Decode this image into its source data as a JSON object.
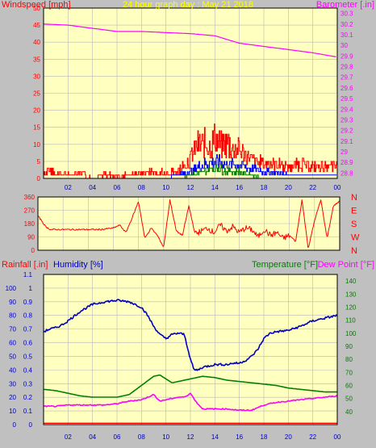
{
  "colors": {
    "background": "#c0c0c0",
    "plot_bg": "#ffffc0",
    "grid": "#b8b8b8",
    "wind_gust": "#ff0000",
    "wind_avg": "#0000ff",
    "wind_calm": "#008000",
    "barometer": "#ff00ff",
    "direction": "#ff0000",
    "humidity": "#0000c0",
    "temperature": "#008000",
    "dewpoint": "#ff00ff",
    "rainfall": "#ff0000",
    "title": "#ffff00"
  },
  "chart_data": [
    {
      "type": "line",
      "title": "24 hour graph day : May 21 2018",
      "left_axis_label": "Windspeed [mph]",
      "right_axis_label": "Barometer [.in]",
      "x_ticks": [
        "02",
        "04",
        "06",
        "08",
        "10",
        "12",
        "14",
        "16",
        "18",
        "20",
        "22",
        "00"
      ],
      "left_ticks": [
        "0",
        "5",
        "10",
        "15",
        "20",
        "25",
        "30",
        "35",
        "40",
        "45",
        "50"
      ],
      "left_ylim": [
        0,
        50
      ],
      "right_ticks": [
        "28.8",
        "28.9",
        "29",
        "29.1",
        "29.2",
        "29.3",
        "29.4",
        "29.5",
        "29.6",
        "29.7",
        "29.8",
        "29.9",
        "30",
        "30.1",
        "30.2",
        "30.3"
      ],
      "right_ylim": [
        28.75,
        30.35
      ],
      "xlim": [
        0,
        24
      ],
      "grid": true,
      "series": [
        {
          "values_x": [
            0,
            2,
            4,
            6,
            8,
            10,
            12,
            14,
            16,
            18,
            20,
            22,
            24
          ],
          "values": [
            30.2,
            30.19,
            30.16,
            30.13,
            30.13,
            30.12,
            30.11,
            30.09,
            30.02,
            29.99,
            29.96,
            29.93,
            29.89
          ],
          "axis": "right",
          "role": "barometer"
        },
        {
          "values_x": [
            0,
            0.5,
            1,
            2,
            3,
            4,
            5,
            6,
            7,
            8,
            9,
            10,
            11,
            11.5,
            12,
            12.5,
            13,
            13.5,
            14,
            14.5,
            15,
            15.5,
            16,
            16.5,
            17,
            18,
            19,
            20,
            21,
            22,
            23,
            24
          ],
          "values": [
            1,
            2,
            1,
            1,
            1,
            0,
            1,
            0,
            1,
            1,
            2,
            1,
            2,
            3,
            6,
            9,
            10,
            8,
            12,
            9,
            10,
            8,
            8,
            7,
            5,
            4,
            4,
            3,
            4,
            3,
            3,
            3
          ],
          "axis": "left",
          "role": "gust"
        },
        {
          "values_x": [
            0,
            2,
            4,
            6,
            8,
            10,
            11,
            12,
            13,
            14,
            15,
            16,
            17,
            18,
            20,
            22,
            24
          ],
          "values": [
            0,
            0,
            0,
            0,
            0,
            0,
            1,
            2,
            4,
            5,
            4,
            4,
            3,
            2,
            1,
            1,
            1
          ],
          "axis": "left",
          "role": "average"
        },
        {
          "values_x": [
            0,
            11,
            12,
            13,
            14,
            15,
            16,
            17,
            18,
            24
          ],
          "values": [
            0,
            0,
            1,
            2,
            3,
            2,
            2,
            1,
            0,
            0
          ],
          "axis": "left",
          "role": "calm"
        }
      ]
    },
    {
      "type": "line",
      "title": "",
      "left_ticks": [
        "0",
        "90",
        "180",
        "270",
        "360"
      ],
      "right_ticks": [
        "N",
        "W",
        "S",
        "E",
        "N"
      ],
      "ylim": [
        0,
        360
      ],
      "xlim": [
        0,
        24
      ],
      "grid": true,
      "series": [
        {
          "values_x": [
            0,
            0.3,
            0.6,
            1,
            3,
            5,
            6,
            6.5,
            7,
            7.5,
            8,
            8.5,
            9,
            9.5,
            10,
            10.5,
            11,
            11.5,
            12,
            12.5,
            13,
            13.5,
            14,
            14.5,
            15,
            15.5,
            16,
            16.5,
            17,
            17.5,
            18,
            18.5,
            19,
            19.5,
            20,
            20.5,
            21,
            21.5,
            22,
            22.5,
            23,
            23.5,
            24
          ],
          "values": [
            230,
            200,
            160,
            140,
            140,
            140,
            150,
            170,
            120,
            220,
            330,
            80,
            150,
            100,
            20,
            340,
            130,
            100,
            300,
            110,
            130,
            150,
            120,
            170,
            130,
            160,
            120,
            150,
            140,
            90,
            140,
            100,
            120,
            80,
            100,
            60,
            340,
            10,
            200,
            340,
            80,
            300,
            330
          ],
          "role": "direction"
        }
      ]
    },
    {
      "type": "line",
      "title": "",
      "label_rainfall": "Rainfall [.in]",
      "label_humidity": "Humidity [%]",
      "label_temperature": "Temperature [°F]",
      "label_dewpoint": "Dew Point [°F]",
      "x_ticks": [
        "02",
        "04",
        "06",
        "08",
        "10",
        "12",
        "14",
        "16",
        "18",
        "20",
        "22",
        "00"
      ],
      "rain_ticks": [
        "0",
        "0.1",
        "0.2",
        "0.3",
        "0.4",
        "0.5",
        "0.6",
        "0.7",
        "0.8",
        "0.9",
        "1",
        "1.1"
      ],
      "rain_ylim": [
        0,
        1.1
      ],
      "humidity_ticks": [
        "0",
        "10",
        "20",
        "30",
        "40",
        "50",
        "60",
        "70",
        "80",
        "90",
        "100"
      ],
      "humidity_ylim": [
        0,
        110
      ],
      "temp_ticks": [
        "40",
        "50",
        "60",
        "70",
        "80",
        "90",
        "100",
        "110",
        "120",
        "130",
        "140"
      ],
      "temp_ylim": [
        30,
        145
      ],
      "xlim": [
        0,
        24
      ],
      "grid": true,
      "series": [
        {
          "values_x": [
            0,
            0.5,
            1,
            1.5,
            2,
            3,
            4,
            5,
            6,
            7,
            8,
            8.5,
            9,
            9.5,
            10,
            10.5,
            11,
            11.5,
            12,
            12.3,
            12.6,
            13,
            13.5,
            14,
            15,
            15.5,
            16,
            16.5,
            17,
            17.5,
            18,
            18.5,
            19,
            20,
            21,
            22,
            23,
            24
          ],
          "values": [
            68,
            70,
            71,
            73,
            76,
            83,
            88,
            90,
            91,
            90,
            86,
            80,
            72,
            66,
            63,
            66,
            67,
            66,
            48,
            40,
            40,
            42,
            43,
            44,
            44,
            45,
            45,
            47,
            50,
            55,
            63,
            67,
            68,
            69,
            72,
            76,
            78,
            80
          ],
          "axis": "humidity",
          "role": "humidity"
        },
        {
          "values_x": [
            0,
            1,
            2,
            3,
            4,
            5,
            6,
            7,
            8,
            9,
            9.5,
            10,
            10.5,
            11,
            12,
            13,
            14,
            15,
            16,
            17,
            18,
            19,
            20,
            21,
            22,
            23,
            24
          ],
          "values": [
            57,
            56,
            54,
            52,
            51,
            51,
            51,
            53,
            60,
            67,
            68,
            65,
            62,
            63,
            65,
            67,
            66,
            64,
            63,
            62,
            61,
            60,
            58,
            57,
            56,
            55,
            55
          ],
          "axis": "temp",
          "role": "temperature"
        },
        {
          "values_x": [
            0,
            1,
            2,
            3,
            4,
            5,
            6,
            7,
            8,
            8.5,
            9,
            9.5,
            10,
            10.5,
            11,
            11.5,
            12,
            12.5,
            13,
            14,
            15,
            16,
            17,
            18,
            19,
            20,
            21,
            22,
            23,
            24
          ],
          "values": [
            44,
            44,
            45,
            45,
            45,
            45,
            46,
            48,
            49,
            51,
            53,
            48,
            49,
            50,
            51,
            51,
            54,
            47,
            42,
            42,
            42,
            41,
            41,
            45,
            47,
            48,
            49,
            50,
            51,
            52
          ],
          "axis": "temp",
          "role": "dewpoint"
        },
        {
          "values_x": [
            0,
            24
          ],
          "values": [
            0.01,
            0.01
          ],
          "axis": "rain",
          "role": "rainfall"
        }
      ]
    }
  ]
}
